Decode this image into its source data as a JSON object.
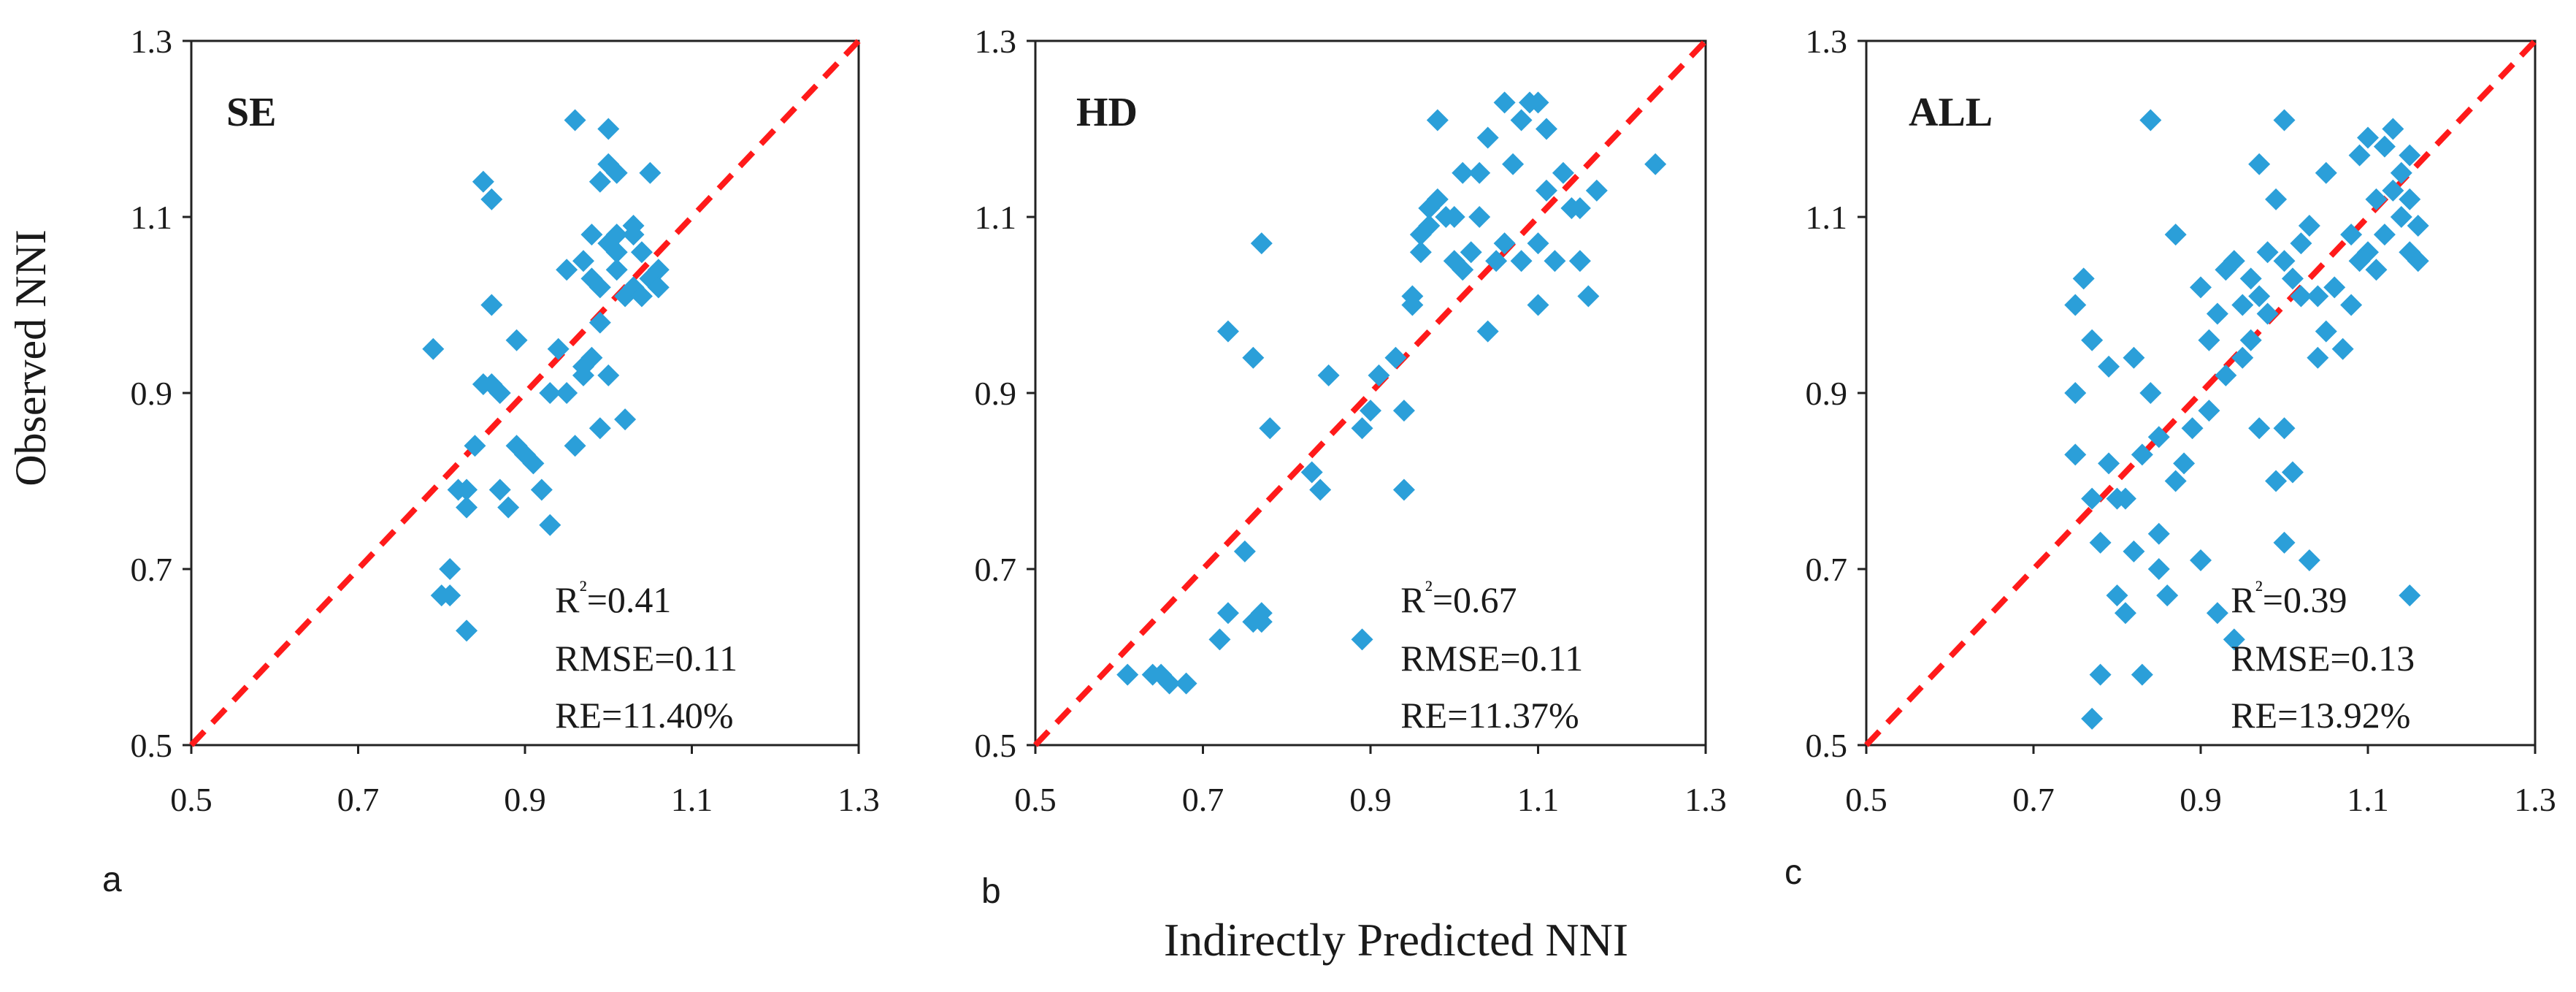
{
  "figure": {
    "ylabel": "Observed NNI",
    "xlabel": "Indirectly Predicted NNI",
    "point_color": "#2b9fd9",
    "line_color": "#ff1a1a"
  },
  "chart_data": [
    {
      "type": "scatter",
      "panel_label": "a",
      "title": "SE",
      "xlim": [
        0.5,
        1.3
      ],
      "ylim": [
        0.5,
        1.3
      ],
      "xticks": [
        "0.5",
        "0.7",
        "0.9",
        "1.1",
        "1.3"
      ],
      "yticks": [
        "0.5",
        "0.7",
        "0.9",
        "1.1",
        "1.3"
      ],
      "reference_line": [
        [
          0.5,
          0.5
        ],
        [
          1.3,
          1.3
        ]
      ],
      "stats": {
        "r2": "R²=0.41",
        "rmse": "RMSE=0.11",
        "re": "RE=11.40%"
      },
      "points": [
        [
          0.79,
          0.95
        ],
        [
          0.8,
          0.67
        ],
        [
          0.81,
          0.7
        ],
        [
          0.81,
          0.67
        ],
        [
          0.82,
          0.79
        ],
        [
          0.83,
          0.79
        ],
        [
          0.83,
          0.77
        ],
        [
          0.83,
          0.63
        ],
        [
          0.84,
          0.84
        ],
        [
          0.85,
          0.91
        ],
        [
          0.85,
          1.14
        ],
        [
          0.86,
          1.12
        ],
        [
          0.86,
          0.91
        ],
        [
          0.86,
          1.0
        ],
        [
          0.87,
          0.9
        ],
        [
          0.87,
          0.79
        ],
        [
          0.88,
          0.77
        ],
        [
          0.89,
          0.84
        ],
        [
          0.89,
          0.96
        ],
        [
          0.9,
          0.83
        ],
        [
          0.91,
          0.82
        ],
        [
          0.92,
          0.79
        ],
        [
          0.93,
          0.75
        ],
        [
          0.93,
          0.9
        ],
        [
          0.94,
          0.95
        ],
        [
          0.95,
          1.04
        ],
        [
          0.95,
          0.9
        ],
        [
          0.96,
          1.21
        ],
        [
          0.96,
          0.84
        ],
        [
          0.97,
          0.93
        ],
        [
          0.97,
          0.92
        ],
        [
          0.97,
          1.05
        ],
        [
          0.98,
          1.08
        ],
        [
          0.98,
          0.94
        ],
        [
          0.98,
          1.03
        ],
        [
          0.99,
          1.14
        ],
        [
          0.99,
          0.98
        ],
        [
          0.99,
          0.86
        ],
        [
          0.99,
          1.02
        ],
        [
          1.0,
          1.16
        ],
        [
          1.0,
          1.2
        ],
        [
          1.0,
          1.07
        ],
        [
          1.0,
          0.92
        ],
        [
          1.01,
          1.04
        ],
        [
          1.01,
          1.06
        ],
        [
          1.01,
          1.15
        ],
        [
          1.01,
          1.08
        ],
        [
          1.02,
          0.87
        ],
        [
          1.02,
          1.01
        ],
        [
          1.03,
          1.08
        ],
        [
          1.03,
          1.02
        ],
        [
          1.03,
          1.09
        ],
        [
          1.04,
          1.01
        ],
        [
          1.04,
          1.06
        ],
        [
          1.05,
          1.15
        ],
        [
          1.05,
          1.03
        ],
        [
          1.06,
          1.04
        ],
        [
          1.06,
          1.02
        ]
      ]
    },
    {
      "type": "scatter",
      "panel_label": "b",
      "title": "HD",
      "xlim": [
        0.5,
        1.3
      ],
      "ylim": [
        0.5,
        1.3
      ],
      "xticks": [
        "0.5",
        "0.7",
        "0.9",
        "1.1",
        "1.3"
      ],
      "yticks": [
        "0.5",
        "0.7",
        "0.9",
        "1.1",
        "1.3"
      ],
      "reference_line": [
        [
          0.5,
          0.5
        ],
        [
          1.3,
          1.3
        ]
      ],
      "stats": {
        "r2": "R²=0.67",
        "rmse": "RMSE=0.11",
        "re": "RE=11.37%"
      },
      "points": [
        [
          0.61,
          0.58
        ],
        [
          0.64,
          0.58
        ],
        [
          0.65,
          0.58
        ],
        [
          0.66,
          0.57
        ],
        [
          0.68,
          0.57
        ],
        [
          0.72,
          0.62
        ],
        [
          0.73,
          0.97
        ],
        [
          0.73,
          0.65
        ],
        [
          0.75,
          0.72
        ],
        [
          0.76,
          0.94
        ],
        [
          0.76,
          0.64
        ],
        [
          0.77,
          0.65
        ],
        [
          0.77,
          0.64
        ],
        [
          0.77,
          1.07
        ],
        [
          0.78,
          0.86
        ],
        [
          0.83,
          0.81
        ],
        [
          0.84,
          0.79
        ],
        [
          0.85,
          0.92
        ],
        [
          0.89,
          0.62
        ],
        [
          0.89,
          0.86
        ],
        [
          0.9,
          0.88
        ],
        [
          0.91,
          0.92
        ],
        [
          0.93,
          0.94
        ],
        [
          0.94,
          0.88
        ],
        [
          0.94,
          0.79
        ],
        [
          0.95,
          1.0
        ],
        [
          0.95,
          1.01
        ],
        [
          0.96,
          1.06
        ],
        [
          0.96,
          1.08
        ],
        [
          0.97,
          1.09
        ],
        [
          0.97,
          1.11
        ],
        [
          0.98,
          1.12
        ],
        [
          0.98,
          1.21
        ],
        [
          0.99,
          1.1
        ],
        [
          1.0,
          1.1
        ],
        [
          1.0,
          1.05
        ],
        [
          1.01,
          1.15
        ],
        [
          1.01,
          1.04
        ],
        [
          1.02,
          1.06
        ],
        [
          1.03,
          1.15
        ],
        [
          1.03,
          1.1
        ],
        [
          1.04,
          0.97
        ],
        [
          1.04,
          1.19
        ],
        [
          1.05,
          1.05
        ],
        [
          1.06,
          1.07
        ],
        [
          1.06,
          1.23
        ],
        [
          1.07,
          1.16
        ],
        [
          1.08,
          1.21
        ],
        [
          1.08,
          1.05
        ],
        [
          1.09,
          1.23
        ],
        [
          1.1,
          1.23
        ],
        [
          1.1,
          1.07
        ],
        [
          1.1,
          1.0
        ],
        [
          1.11,
          1.2
        ],
        [
          1.11,
          1.13
        ],
        [
          1.12,
          1.05
        ],
        [
          1.13,
          1.15
        ],
        [
          1.14,
          1.11
        ],
        [
          1.15,
          1.05
        ],
        [
          1.15,
          1.11
        ],
        [
          1.16,
          1.01
        ],
        [
          1.17,
          1.13
        ],
        [
          1.24,
          1.16
        ]
      ]
    },
    {
      "type": "scatter",
      "panel_label": "c",
      "title": "ALL",
      "xlim": [
        0.5,
        1.3
      ],
      "ylim": [
        0.5,
        1.3
      ],
      "xticks": [
        "0.5",
        "0.7",
        "0.9",
        "1.1",
        "1.3"
      ],
      "yticks": [
        "0.5",
        "0.7",
        "0.9",
        "1.1",
        "1.3"
      ],
      "reference_line": [
        [
          0.5,
          0.5
        ],
        [
          1.3,
          1.3
        ]
      ],
      "stats": {
        "r2": "R²=0.39",
        "rmse": "RMSE=0.13",
        "re": "RE=13.92%"
      },
      "points": [
        [
          0.75,
          1.0
        ],
        [
          0.75,
          0.9
        ],
        [
          0.75,
          0.83
        ],
        [
          0.76,
          1.03
        ],
        [
          0.77,
          0.78
        ],
        [
          0.77,
          0.96
        ],
        [
          0.77,
          0.53
        ],
        [
          0.78,
          0.73
        ],
        [
          0.78,
          0.58
        ],
        [
          0.79,
          0.82
        ],
        [
          0.79,
          0.93
        ],
        [
          0.8,
          0.67
        ],
        [
          0.8,
          0.78
        ],
        [
          0.81,
          0.78
        ],
        [
          0.81,
          0.65
        ],
        [
          0.82,
          0.94
        ],
        [
          0.82,
          0.72
        ],
        [
          0.83,
          0.83
        ],
        [
          0.83,
          0.58
        ],
        [
          0.84,
          0.9
        ],
        [
          0.84,
          1.21
        ],
        [
          0.85,
          0.85
        ],
        [
          0.85,
          0.7
        ],
        [
          0.85,
          0.74
        ],
        [
          0.86,
          0.67
        ],
        [
          0.87,
          1.08
        ],
        [
          0.87,
          0.8
        ],
        [
          0.88,
          0.82
        ],
        [
          0.89,
          0.86
        ],
        [
          0.9,
          0.71
        ],
        [
          0.9,
          1.02
        ],
        [
          0.91,
          0.88
        ],
        [
          0.91,
          0.96
        ],
        [
          0.92,
          0.65
        ],
        [
          0.92,
          0.99
        ],
        [
          0.93,
          0.92
        ],
        [
          0.93,
          1.04
        ],
        [
          0.94,
          0.62
        ],
        [
          0.94,
          1.05
        ],
        [
          0.95,
          0.94
        ],
        [
          0.95,
          1.0
        ],
        [
          0.96,
          1.03
        ],
        [
          0.96,
          0.96
        ],
        [
          0.97,
          1.16
        ],
        [
          0.97,
          1.01
        ],
        [
          0.97,
          0.86
        ],
        [
          0.98,
          1.06
        ],
        [
          0.98,
          0.99
        ],
        [
          0.99,
          0.8
        ],
        [
          0.99,
          1.12
        ],
        [
          1.0,
          1.21
        ],
        [
          1.0,
          0.86
        ],
        [
          1.0,
          0.73
        ],
        [
          1.0,
          1.05
        ],
        [
          1.01,
          0.81
        ],
        [
          1.01,
          1.03
        ],
        [
          1.02,
          1.07
        ],
        [
          1.02,
          1.01
        ],
        [
          1.03,
          0.71
        ],
        [
          1.03,
          1.09
        ],
        [
          1.04,
          0.94
        ],
        [
          1.04,
          1.01
        ],
        [
          1.05,
          0.97
        ],
        [
          1.05,
          1.15
        ],
        [
          1.06,
          1.02
        ],
        [
          1.07,
          0.95
        ],
        [
          1.08,
          1.0
        ],
        [
          1.08,
          1.08
        ],
        [
          1.09,
          1.17
        ],
        [
          1.09,
          1.05
        ],
        [
          1.1,
          1.06
        ],
        [
          1.1,
          1.19
        ],
        [
          1.11,
          1.12
        ],
        [
          1.11,
          1.04
        ],
        [
          1.12,
          1.18
        ],
        [
          1.12,
          1.08
        ],
        [
          1.13,
          1.13
        ],
        [
          1.13,
          1.2
        ],
        [
          1.14,
          1.1
        ],
        [
          1.14,
          1.15
        ],
        [
          1.15,
          1.06
        ],
        [
          1.15,
          1.17
        ],
        [
          1.15,
          1.12
        ],
        [
          1.15,
          0.67
        ],
        [
          1.16,
          1.05
        ],
        [
          1.16,
          1.09
        ]
      ]
    }
  ]
}
